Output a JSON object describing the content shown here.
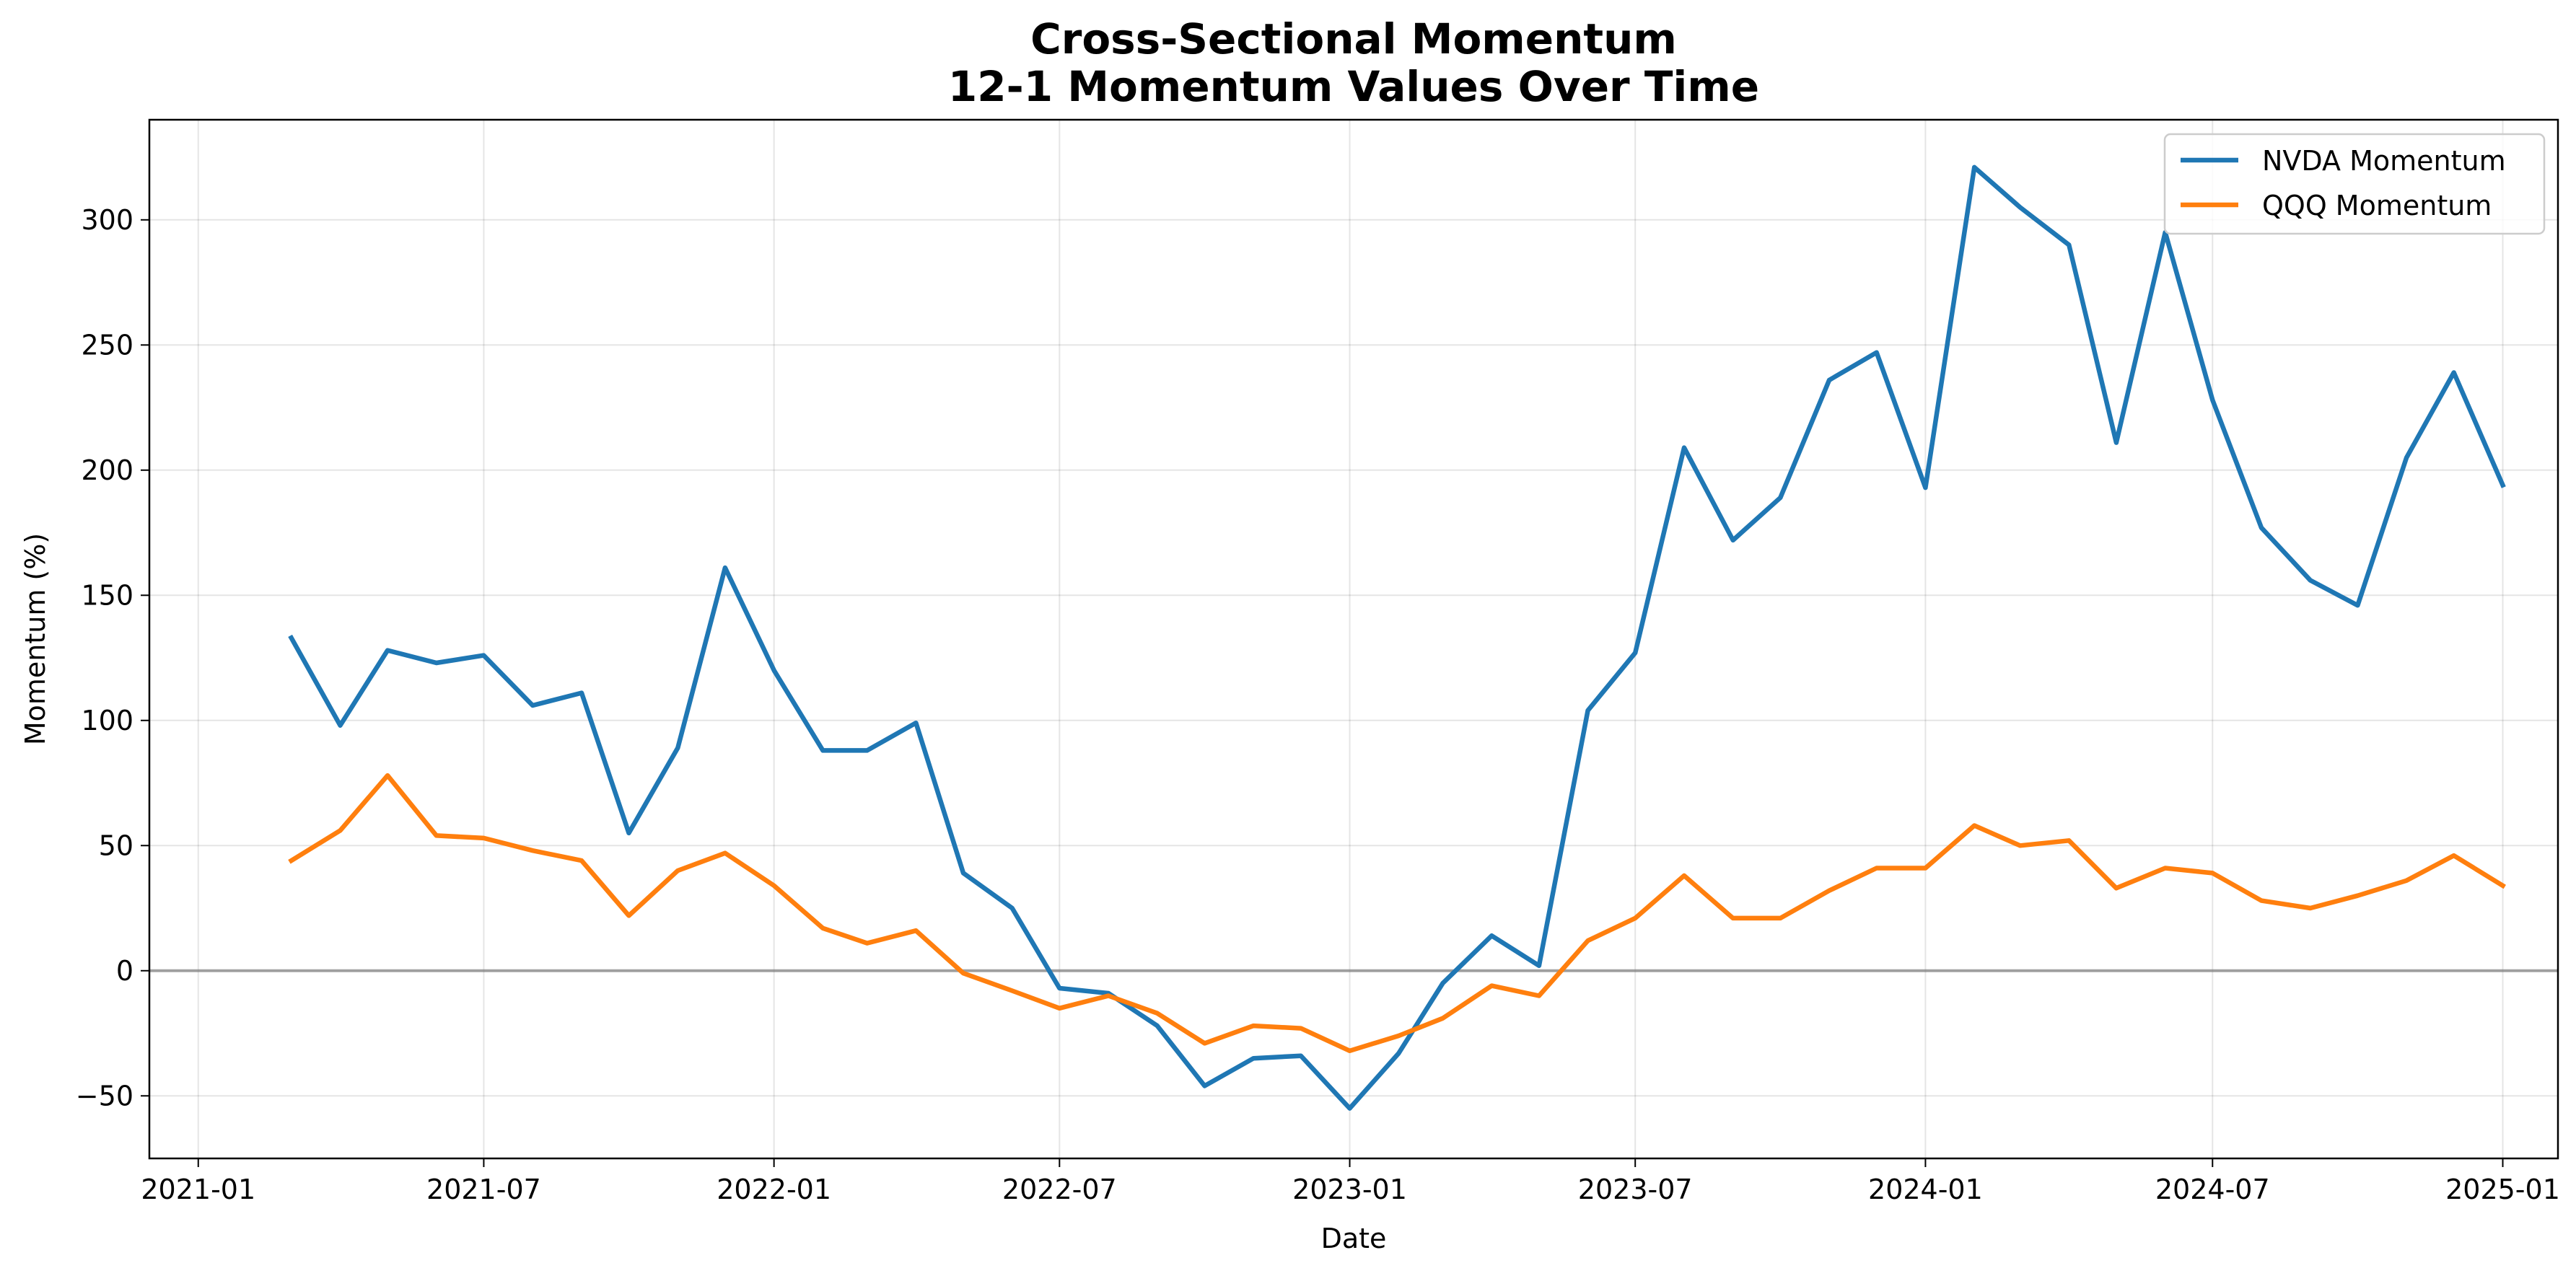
{
  "chart_data": {
    "type": "line",
    "title": "Cross-Sectional Momentum",
    "subtitle": "12-1 Momentum Values Over Time",
    "xlabel": "Date",
    "ylabel": "Momentum (%)",
    "xlim": [
      "2020-12-01",
      "2025-02-05"
    ],
    "ylim": [
      -75,
      340
    ],
    "x_ticks": [
      "2021-01-01",
      "2021-07-01",
      "2022-01-01",
      "2022-07-01",
      "2023-01-01",
      "2023-07-01",
      "2024-01-01",
      "2024-07-01",
      "2025-01-01"
    ],
    "x_tick_labels": [
      "2021-01",
      "2021-07",
      "2022-01",
      "2022-07",
      "2023-01",
      "2023-07",
      "2024-01",
      "2024-07",
      "2025-01"
    ],
    "y_ticks": [
      -50,
      0,
      50,
      100,
      150,
      200,
      250,
      300
    ],
    "y_tick_labels": [
      "−50",
      "0",
      "50",
      "100",
      "150",
      "200",
      "250",
      "300"
    ],
    "grid": true,
    "zero_line": 0,
    "legend": "top-right",
    "x": [
      "2021-03-01",
      "2021-04-01",
      "2021-05-01",
      "2021-06-01",
      "2021-07-01",
      "2021-08-01",
      "2021-09-01",
      "2021-10-01",
      "2021-11-01",
      "2021-12-01",
      "2022-01-01",
      "2022-02-01",
      "2022-03-01",
      "2022-04-01",
      "2022-05-01",
      "2022-06-01",
      "2022-07-01",
      "2022-08-01",
      "2022-09-01",
      "2022-10-01",
      "2022-11-01",
      "2022-12-01",
      "2023-01-01",
      "2023-02-01",
      "2023-03-01",
      "2023-04-01",
      "2023-05-01",
      "2023-06-01",
      "2023-07-01",
      "2023-08-01",
      "2023-09-01",
      "2023-10-01",
      "2023-11-01",
      "2023-12-01",
      "2024-01-01",
      "2024-02-01",
      "2024-03-01",
      "2024-04-01",
      "2024-05-01",
      "2024-06-01",
      "2024-07-01",
      "2024-08-01",
      "2024-09-01",
      "2024-10-01",
      "2024-11-01",
      "2024-12-01",
      "2025-01-01"
    ],
    "series": [
      {
        "name": "NVDA Momentum",
        "color": "#1f77b4",
        "values": [
          133,
          98,
          128,
          123,
          126,
          106,
          111,
          55,
          89,
          161,
          120,
          88,
          88,
          99,
          39,
          25,
          -7,
          -9,
          -22,
          -46,
          -35,
          -34,
          -55,
          -33,
          -5,
          14,
          2,
          104,
          127,
          209,
          172,
          189,
          236,
          247,
          193,
          321,
          305,
          290,
          211,
          295,
          228,
          177,
          156,
          146,
          205,
          239,
          194
        ]
      },
      {
        "name": "QQQ Momentum",
        "color": "#ff7f0e",
        "values": [
          44,
          56,
          78,
          54,
          53,
          48,
          44,
          22,
          40,
          47,
          34,
          17,
          11,
          16,
          -1,
          -8,
          -15,
          -10,
          -17,
          -29,
          -22,
          -23,
          -32,
          -26,
          -19,
          -6,
          -10,
          12,
          21,
          38,
          21,
          21,
          32,
          41,
          41,
          58,
          50,
          52,
          33,
          41,
          39,
          28,
          25,
          30,
          36,
          46,
          34
        ]
      }
    ]
  }
}
